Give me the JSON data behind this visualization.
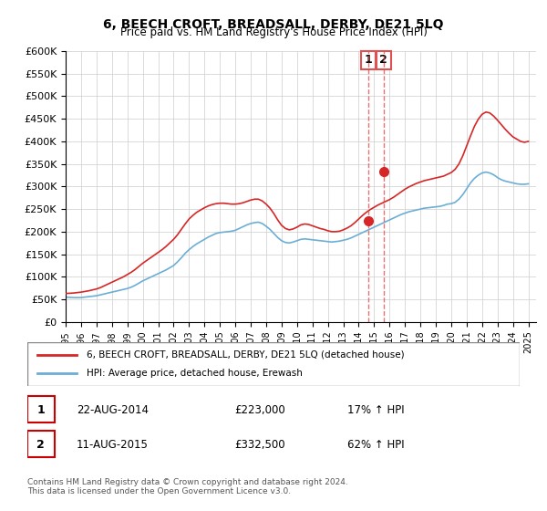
{
  "title": "6, BEECH CROFT, BREADSALL, DERBY, DE21 5LQ",
  "subtitle": "Price paid vs. HM Land Registry's House Price Index (HPI)",
  "ylabel_ticks": [
    "£0",
    "£50K",
    "£100K",
    "£150K",
    "£200K",
    "£250K",
    "£300K",
    "£350K",
    "£400K",
    "£450K",
    "£500K",
    "£550K",
    "£600K"
  ],
  "ytick_values": [
    0,
    50000,
    100000,
    150000,
    200000,
    250000,
    300000,
    350000,
    400000,
    450000,
    500000,
    550000,
    600000
  ],
  "xlim_start": 1995.0,
  "xlim_end": 2025.5,
  "ylim_min": 0,
  "ylim_max": 600000,
  "hpi_color": "#6baed6",
  "price_color": "#d62728",
  "marker1_date": 2014.64,
  "marker1_price": 223000,
  "marker1_label": "1",
  "marker2_date": 2015.61,
  "marker2_price": 332500,
  "marker2_label": "2",
  "vline_color": "#e05050",
  "legend_label_red": "6, BEECH CROFT, BREADSALL, DERBY, DE21 5LQ (detached house)",
  "legend_label_blue": "HPI: Average price, detached house, Erewash",
  "table_rows": [
    {
      "num": "1",
      "date": "22-AUG-2014",
      "price": "£223,000",
      "change": "17% ↑ HPI"
    },
    {
      "num": "2",
      "date": "11-AUG-2015",
      "price": "£332,500",
      "change": "62% ↑ HPI"
    }
  ],
  "footnote": "Contains HM Land Registry data © Crown copyright and database right 2024.\nThis data is licensed under the Open Government Licence v3.0.",
  "hpi_data_x": [
    1995.0,
    1995.25,
    1995.5,
    1995.75,
    1996.0,
    1996.25,
    1996.5,
    1996.75,
    1997.0,
    1997.25,
    1997.5,
    1997.75,
    1998.0,
    1998.25,
    1998.5,
    1998.75,
    1999.0,
    1999.25,
    1999.5,
    1999.75,
    2000.0,
    2000.25,
    2000.5,
    2000.75,
    2001.0,
    2001.25,
    2001.5,
    2001.75,
    2002.0,
    2002.25,
    2002.5,
    2002.75,
    2003.0,
    2003.25,
    2003.5,
    2003.75,
    2004.0,
    2004.25,
    2004.5,
    2004.75,
    2005.0,
    2005.25,
    2005.5,
    2005.75,
    2006.0,
    2006.25,
    2006.5,
    2006.75,
    2007.0,
    2007.25,
    2007.5,
    2007.75,
    2008.0,
    2008.25,
    2008.5,
    2008.75,
    2009.0,
    2009.25,
    2009.5,
    2009.75,
    2010.0,
    2010.25,
    2010.5,
    2010.75,
    2011.0,
    2011.25,
    2011.5,
    2011.75,
    2012.0,
    2012.25,
    2012.5,
    2012.75,
    2013.0,
    2013.25,
    2013.5,
    2013.75,
    2014.0,
    2014.25,
    2014.5,
    2014.75,
    2015.0,
    2015.25,
    2015.5,
    2015.75,
    2016.0,
    2016.25,
    2016.5,
    2016.75,
    2017.0,
    2017.25,
    2017.5,
    2017.75,
    2018.0,
    2018.25,
    2018.5,
    2018.75,
    2019.0,
    2019.25,
    2019.5,
    2019.75,
    2020.0,
    2020.25,
    2020.5,
    2020.75,
    2021.0,
    2021.25,
    2021.5,
    2021.75,
    2022.0,
    2022.25,
    2022.5,
    2022.75,
    2023.0,
    2023.25,
    2023.5,
    2023.75,
    2024.0,
    2024.25,
    2024.5,
    2024.75,
    2025.0
  ],
  "hpi_data_y": [
    55000,
    54500,
    54000,
    53800,
    54000,
    55000,
    56000,
    57000,
    58000,
    60000,
    62000,
    64000,
    66000,
    68000,
    70000,
    72000,
    74000,
    77000,
    81000,
    86000,
    91000,
    95000,
    99000,
    103000,
    107000,
    111000,
    115000,
    120000,
    125000,
    133000,
    142000,
    152000,
    160000,
    167000,
    173000,
    178000,
    183000,
    188000,
    192000,
    196000,
    198000,
    199000,
    200000,
    201000,
    203000,
    207000,
    211000,
    215000,
    218000,
    220000,
    221000,
    218000,
    212000,
    205000,
    196000,
    187000,
    180000,
    176000,
    175000,
    177000,
    180000,
    183000,
    184000,
    183000,
    182000,
    181000,
    180000,
    179000,
    178000,
    177000,
    178000,
    179000,
    181000,
    183000,
    186000,
    190000,
    194000,
    198000,
    202000,
    206000,
    210000,
    214000,
    218000,
    222000,
    226000,
    230000,
    234000,
    238000,
    241000,
    244000,
    246000,
    248000,
    250000,
    252000,
    253000,
    254000,
    255000,
    256000,
    258000,
    261000,
    262000,
    265000,
    272000,
    282000,
    295000,
    308000,
    318000,
    325000,
    330000,
    332000,
    330000,
    326000,
    320000,
    315000,
    312000,
    310000,
    308000,
    306000,
    305000,
    305000,
    306000
  ],
  "price_data_x": [
    1995.0,
    1995.25,
    1995.5,
    1995.75,
    1996.0,
    1996.25,
    1996.5,
    1996.75,
    1997.0,
    1997.25,
    1997.5,
    1997.75,
    1998.0,
    1998.25,
    1998.5,
    1998.75,
    1999.0,
    1999.25,
    1999.5,
    1999.75,
    2000.0,
    2000.25,
    2000.5,
    2000.75,
    2001.0,
    2001.25,
    2001.5,
    2001.75,
    2002.0,
    2002.25,
    2002.5,
    2002.75,
    2003.0,
    2003.25,
    2003.5,
    2003.75,
    2004.0,
    2004.25,
    2004.5,
    2004.75,
    2005.0,
    2005.25,
    2005.5,
    2005.75,
    2006.0,
    2006.25,
    2006.5,
    2006.75,
    2007.0,
    2007.25,
    2007.5,
    2007.75,
    2008.0,
    2008.25,
    2008.5,
    2008.75,
    2009.0,
    2009.25,
    2009.5,
    2009.75,
    2010.0,
    2010.25,
    2010.5,
    2010.75,
    2011.0,
    2011.25,
    2011.5,
    2011.75,
    2012.0,
    2012.25,
    2012.5,
    2012.75,
    2013.0,
    2013.25,
    2013.5,
    2013.75,
    2014.0,
    2014.25,
    2014.5,
    2014.75,
    2015.0,
    2015.25,
    2015.5,
    2015.75,
    2016.0,
    2016.25,
    2016.5,
    2016.75,
    2017.0,
    2017.25,
    2017.5,
    2017.75,
    2018.0,
    2018.25,
    2018.5,
    2018.75,
    2019.0,
    2019.25,
    2019.5,
    2019.75,
    2020.0,
    2020.25,
    2020.5,
    2020.75,
    2021.0,
    2021.25,
    2021.5,
    2021.75,
    2022.0,
    2022.25,
    2022.5,
    2022.75,
    2023.0,
    2023.25,
    2023.5,
    2023.75,
    2024.0,
    2024.25,
    2024.5,
    2024.75,
    2025.0
  ],
  "price_data_y": [
    63000,
    63500,
    64000,
    65000,
    66000,
    67500,
    69000,
    71000,
    73000,
    76000,
    80000,
    84000,
    88000,
    92000,
    96000,
    100000,
    105000,
    110000,
    116000,
    123000,
    130000,
    136000,
    142000,
    148000,
    154000,
    160000,
    167000,
    175000,
    183000,
    193000,
    205000,
    217000,
    228000,
    236000,
    243000,
    248000,
    253000,
    257000,
    260000,
    262000,
    263000,
    263000,
    262000,
    261000,
    261000,
    262000,
    264000,
    267000,
    270000,
    272000,
    272000,
    268000,
    261000,
    252000,
    240000,
    226000,
    214000,
    207000,
    204000,
    206000,
    210000,
    215000,
    217000,
    216000,
    213000,
    210000,
    207000,
    205000,
    202000,
    200000,
    200000,
    201000,
    204000,
    208000,
    213000,
    220000,
    228000,
    236000,
    243000,
    249000,
    254000,
    259000,
    263000,
    267000,
    271000,
    276000,
    282000,
    288000,
    294000,
    299000,
    303000,
    307000,
    310000,
    313000,
    315000,
    317000,
    319000,
    321000,
    323000,
    327000,
    331000,
    338000,
    350000,
    368000,
    390000,
    412000,
    433000,
    449000,
    460000,
    465000,
    463000,
    456000,
    447000,
    437000,
    427000,
    418000,
    410000,
    405000,
    400000,
    398000,
    400000
  ]
}
